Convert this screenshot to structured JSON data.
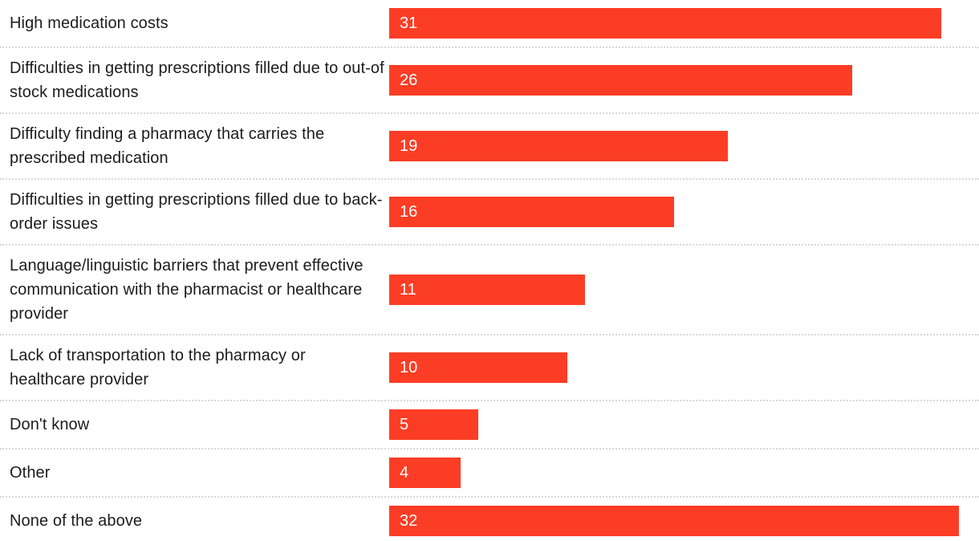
{
  "chart_data": {
    "type": "bar",
    "orientation": "horizontal",
    "title": "",
    "xlabel": "",
    "ylabel": "",
    "categories": [
      "High medication costs",
      "Difficulties in getting prescriptions filled due to out-of stock medications",
      "Difficulty finding a pharmacy that carries the prescribed medication",
      "Difficulties in getting prescriptions filled due to back-order issues",
      "Language/linguistic barriers that prevent effective communication with the pharmacist or healthcare provider",
      "Lack of transportation to the pharmacy or healthcare provider",
      "Don't know",
      "Other",
      "None of the above"
    ],
    "values": [
      31,
      26,
      19,
      16,
      11,
      10,
      5,
      4,
      32
    ],
    "value_labels_inside_bars": true,
    "xlim": [
      0,
      32.6
    ],
    "grid": false,
    "legend": false,
    "row_separator_style": "dotted",
    "colors": {
      "bar": "#FC3D25",
      "value_label": "#FFFFFF",
      "category_label": "#1C1C1C",
      "separator": "#D8D8D8",
      "background": "#FFFFFF"
    }
  }
}
